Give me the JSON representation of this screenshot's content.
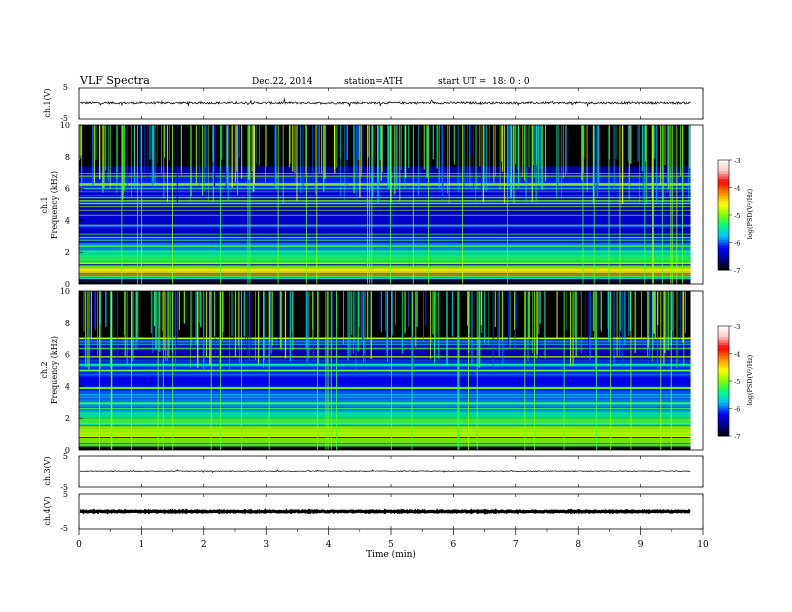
{
  "header": {
    "title": "VLF Spectra",
    "date": "Dec.22, 2014",
    "station": "station=ATH",
    "start": "start UT =",
    "start_time": "18: 0 : 0"
  },
  "chart_data": [
    {
      "id": "ch1_waveform",
      "type": "line",
      "ylabel": "ch.1(V)",
      "yticks": [
        "5",
        "-5"
      ],
      "ylim": [
        -5,
        5
      ],
      "xlim": [
        0,
        10
      ],
      "x_end": 9.8,
      "baseline": 0.2,
      "noise_amplitude": 0.35,
      "spike_amplitude": 1.2
    },
    {
      "id": "ch1_spectrogram",
      "type": "heatmap",
      "ylabel": "ch.1 Frequency (kHz)",
      "yticks": [
        "0",
        "2",
        "4",
        "6",
        "8",
        "10"
      ],
      "ylim": [
        0,
        10
      ],
      "xlim": [
        0,
        10
      ],
      "x_end": 9.8,
      "colorbar_label": "log(PSD(V²/Hz)",
      "colorbar_ticks": [
        "-3",
        "-4",
        "-5",
        "-6",
        "-7"
      ],
      "colorbar_range": [
        -7,
        -3
      ],
      "colorscale": [
        "#000000",
        "#00008b",
        "#0000ff",
        "#00bfff",
        "#00ff7f",
        "#7fff00",
        "#ffff00",
        "#ff8c00",
        "#ff0000",
        "#ffc8c8",
        "#ffffff"
      ],
      "bands": [
        {
          "f": 0.3,
          "level": -3.7
        },
        {
          "f": 0.5,
          "level": -4.0
        },
        {
          "f": 0.7,
          "level": -4.6
        },
        {
          "f": 1.0,
          "level": -5.1
        },
        {
          "f": 1.4,
          "level": -5.3
        },
        {
          "f": 1.8,
          "level": -5.5
        },
        {
          "f": 2.1,
          "level": -5.9
        },
        {
          "f": 2.6,
          "level": -6.2
        },
        {
          "f": 3.1,
          "level": -6.3
        },
        {
          "f": 5.0,
          "level": -6.3
        },
        {
          "f": 5.9,
          "level": -6.1
        },
        {
          "f": 6.8,
          "level": -6.5
        }
      ]
    },
    {
      "id": "ch2_spectrogram",
      "type": "heatmap",
      "ylabel": "ch.2 Frequency (kHz)",
      "yticks": [
        "0",
        "2",
        "4",
        "6",
        "8",
        "10"
      ],
      "ylim": [
        0,
        10
      ],
      "xlim": [
        0,
        10
      ],
      "x_end": 9.8,
      "colorbar_label": "log(PSD(V²/Hz)",
      "colorbar_ticks": [
        "-3",
        "-4",
        "-5",
        "-6",
        "-7"
      ],
      "colorbar_range": [
        -7,
        -3
      ],
      "colorscale": [
        "#000000",
        "#00008b",
        "#0000ff",
        "#00bfff",
        "#00ff7f",
        "#7fff00",
        "#ffff00",
        "#ff8c00",
        "#ff0000",
        "#ffc8c8",
        "#ffffff"
      ],
      "bands": [
        {
          "f": 0.3,
          "level": -5.0
        },
        {
          "f": 0.8,
          "level": -4.6
        },
        {
          "f": 1.1,
          "level": -4.9
        },
        {
          "f": 1.5,
          "level": -5.2
        },
        {
          "f": 2.0,
          "level": -5.5
        },
        {
          "f": 2.6,
          "level": -5.9
        },
        {
          "f": 3.2,
          "level": -6.0
        },
        {
          "f": 4.0,
          "level": -6.2
        },
        {
          "f": 4.8,
          "level": -6.1
        },
        {
          "f": 5.6,
          "level": -6.4
        },
        {
          "f": 6.5,
          "level": -6.3
        }
      ]
    },
    {
      "id": "ch3_waveform",
      "type": "line",
      "ylabel": "ch.3(V)",
      "yticks": [
        "5",
        "-5"
      ],
      "ylim": [
        -5,
        5
      ],
      "xlim": [
        0,
        10
      ],
      "x_end": 9.8,
      "baseline": 0.1,
      "noise_amplitude": 0.12,
      "spike_amplitude": 0.4
    },
    {
      "id": "ch4_waveform",
      "type": "line",
      "ylabel": "ch.4(V)",
      "yticks": [
        "5",
        "-5"
      ],
      "ylim": [
        -5,
        5
      ],
      "xlim": [
        0,
        10
      ],
      "x_end": 9.8,
      "baseline": 0.0,
      "noise_amplitude": 0.15,
      "spike_amplitude": 0.0
    }
  ],
  "xaxis": {
    "label": "Time (min)",
    "ticks": [
      "0",
      "1",
      "2",
      "3",
      "4",
      "5",
      "6",
      "7",
      "8",
      "9",
      "10"
    ]
  }
}
